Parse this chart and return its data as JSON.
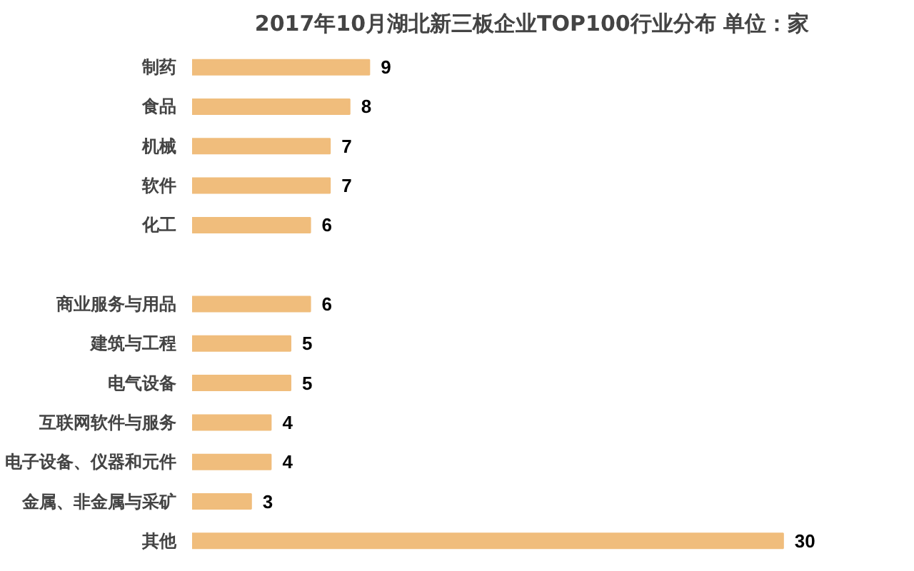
{
  "chart_data": {
    "type": "bar",
    "orientation": "horizontal",
    "title": "2017年10月湖北新三板企业TOP100行业分布 单位：家",
    "categories": [
      "制药",
      "食品",
      "机械",
      "软件",
      "化工",
      null,
      "商业服务与用品",
      "建筑与工程",
      "电气设备",
      "互联网软件与服务",
      "电子设备、仪器和元件",
      "金属、非金属与采矿",
      "其他"
    ],
    "values": [
      9,
      8,
      7,
      7,
      6,
      null,
      6,
      5,
      5,
      4,
      4,
      3,
      30
    ],
    "color": "#f0bd7c",
    "data_labels": true
  }
}
